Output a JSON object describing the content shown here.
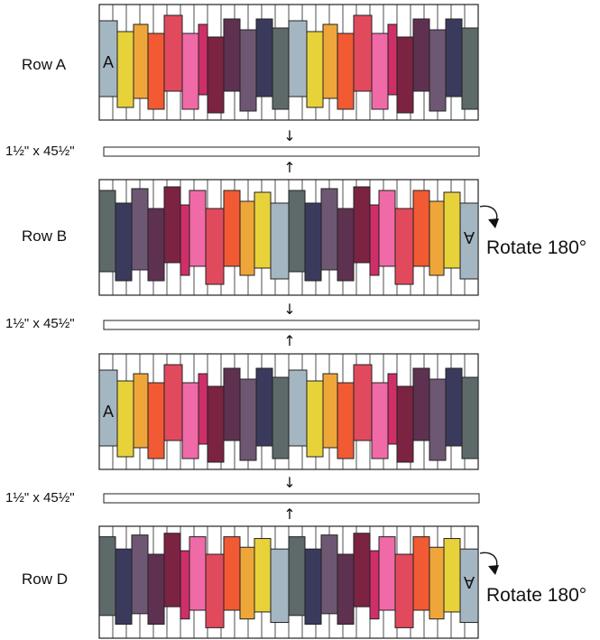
{
  "rows": [
    {
      "label": "Row A",
      "letter": "A",
      "rotated": false,
      "rotate_note": ""
    },
    {
      "label": "Row B",
      "letter": "A",
      "rotated": true,
      "rotate_note": "Rotate 180°"
    },
    {
      "label": "",
      "letter": "A",
      "rotated": false,
      "rotate_note": ""
    },
    {
      "label": "Row D",
      "letter": "A",
      "rotated": true,
      "rotate_note": "Rotate 180°"
    }
  ],
  "sashing": [
    "1½\" x 45½\"",
    "1½\" x 45½\"",
    "1½\" x 45½\""
  ],
  "strip_colors": [
    "#a4b6c2",
    "#e8d23a",
    "#eea63a",
    "#f15a33",
    "#e14a5d",
    "#f06aa8",
    "#cf2f68",
    "#7c2342",
    "#5f3150",
    "#6e5772",
    "#3a3b5c",
    "#5e6a6a"
  ],
  "outline_color": "#222222",
  "arrow_glyph_down": "↓",
  "arrow_glyph_up": "↑"
}
